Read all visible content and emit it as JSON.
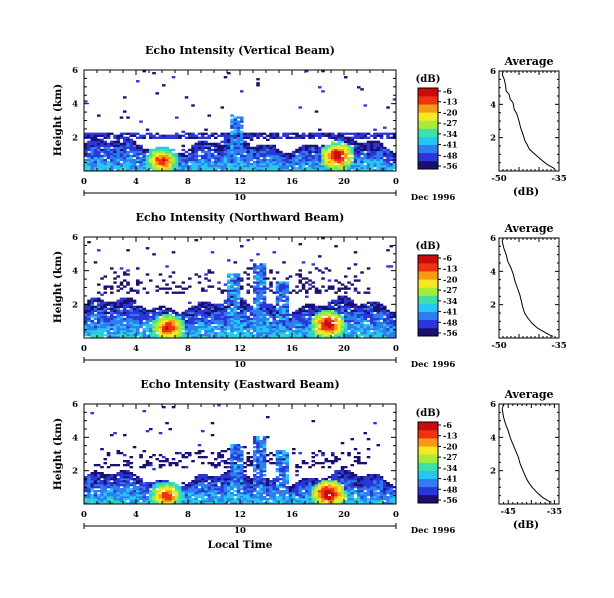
{
  "figure": {
    "bottom_xlabel": "Local Time",
    "date_label": "Dec 1996",
    "day_label": "10",
    "colorbar_title": "(dB)",
    "avg_title": "Average",
    "avg_xlabel": "(dB)"
  },
  "colorbar": {
    "ticks": [
      "-6",
      "-13",
      "-20",
      "-27",
      "-34",
      "-41",
      "-48",
      "-56"
    ],
    "colors": [
      "#1a1070",
      "#2a36d8",
      "#2f7df0",
      "#26c8f2",
      "#3ee0a8",
      "#a8ec38",
      "#f6e822",
      "#f89a18",
      "#ee3212",
      "#c80c0c"
    ]
  },
  "chart_data": [
    {
      "type": "heatmap",
      "title": "Echo Intensity (Vertical Beam)",
      "ylabel": "Height (km)",
      "x_ticks": [
        "0",
        "4",
        "8",
        "12",
        "16",
        "20",
        "0"
      ],
      "y_ticks": [
        "2",
        "4",
        "6"
      ],
      "xlim": [
        0,
        24
      ],
      "ylim": [
        0,
        6
      ],
      "units": "dB",
      "color_range": [
        -56,
        -6
      ],
      "features": {
        "base_top_km": 1.6,
        "band_km": [
          1.9,
          2.3
        ],
        "hot_spots": [
          {
            "time": 6,
            "height_km": 0.6,
            "db": -12
          },
          {
            "time": 19.5,
            "height_km": 0.9,
            "db": -8
          }
        ],
        "spikes": [
          {
            "time": 11.8,
            "top_km": 3.4
          }
        ],
        "speckle_top_km": 6
      }
    },
    {
      "type": "heatmap",
      "title": "Echo Intensity (Northward Beam)",
      "ylabel": "Height (km)",
      "x_ticks": [
        "0",
        "4",
        "8",
        "12",
        "16",
        "20",
        "0"
      ],
      "y_ticks": [
        "2",
        "4",
        "6"
      ],
      "xlim": [
        0,
        24
      ],
      "ylim": [
        0,
        6
      ],
      "units": "dB",
      "color_range": [
        -56,
        -6
      ],
      "features": {
        "base_top_km": 2.0,
        "upper_layer_km": [
          2.6,
          4.2
        ],
        "hot_spots": [
          {
            "time": 6.5,
            "height_km": 0.6,
            "db": -10
          },
          {
            "time": 18.8,
            "height_km": 0.8,
            "db": -8
          }
        ],
        "spikes": [
          {
            "time": 11.5,
            "top_km": 3.8
          },
          {
            "time": 13.5,
            "top_km": 4.4
          },
          {
            "time": 15.2,
            "top_km": 3.4
          }
        ],
        "speckle_top_km": 6
      }
    },
    {
      "type": "heatmap",
      "title": "Echo Intensity (Eastward Beam)",
      "ylabel": "Height (km)",
      "x_ticks": [
        "0",
        "4",
        "8",
        "12",
        "16",
        "20",
        "0"
      ],
      "y_ticks": [
        "2",
        "4",
        "6"
      ],
      "xlim": [
        0,
        24
      ],
      "ylim": [
        0,
        6
      ],
      "units": "dB",
      "color_range": [
        -56,
        -6
      ],
      "features": {
        "base_top_km": 1.6,
        "upper_layer_km": [
          2.2,
          3.4
        ],
        "hot_spots": [
          {
            "time": 6.3,
            "height_km": 0.5,
            "db": -12
          },
          {
            "time": 18.8,
            "height_km": 0.6,
            "db": -6
          }
        ],
        "spikes": [
          {
            "time": 11.8,
            "top_km": 3.6
          },
          {
            "time": 13.5,
            "top_km": 4.1
          },
          {
            "time": 15.2,
            "top_km": 3.2
          }
        ],
        "speckle_top_km": 6
      }
    },
    {
      "type": "line",
      "title": "Average",
      "xlabel": "(dB)",
      "x_ticks": [
        "-50",
        "-35"
      ],
      "y_ticks": [
        "2",
        "4",
        "6"
      ],
      "xlim": [
        -50,
        -35
      ],
      "ylim": [
        0,
        6
      ],
      "points": [
        [
          -49,
          6
        ],
        [
          -49.2,
          5.8
        ],
        [
          -48.7,
          5.5
        ],
        [
          -48.4,
          5.2
        ],
        [
          -48.2,
          4.8
        ],
        [
          -47.5,
          4.6
        ],
        [
          -47.2,
          4.3
        ],
        [
          -46.5,
          4.1
        ],
        [
          -46.2,
          3.7
        ],
        [
          -45.5,
          3.4
        ],
        [
          -45.0,
          3.0
        ],
        [
          -44.6,
          2.6
        ],
        [
          -44.0,
          2.2
        ],
        [
          -43.5,
          1.8
        ],
        [
          -43.0,
          1.6
        ],
        [
          -42.4,
          1.3
        ],
        [
          -41.0,
          1.0
        ],
        [
          -39.6,
          0.7
        ],
        [
          -38.0,
          0.4
        ],
        [
          -36.5,
          0.2
        ],
        [
          -36.0,
          0.1
        ]
      ]
    },
    {
      "type": "line",
      "title": "Average",
      "xlabel": "(dB)",
      "x_ticks": [
        "-50",
        "-35"
      ],
      "y_ticks": [
        "2",
        "4",
        "6"
      ],
      "xlim": [
        -50,
        -35
      ],
      "ylim": [
        0,
        6
      ],
      "points": [
        [
          -49,
          6
        ],
        [
          -49.2,
          5.8
        ],
        [
          -48.8,
          5.4
        ],
        [
          -48.2,
          5.0
        ],
        [
          -47.8,
          4.6
        ],
        [
          -47.0,
          4.2
        ],
        [
          -46.4,
          3.8
        ],
        [
          -46.0,
          3.4
        ],
        [
          -45.4,
          3.0
        ],
        [
          -44.8,
          2.6
        ],
        [
          -44.4,
          2.2
        ],
        [
          -44.0,
          1.8
        ],
        [
          -43.6,
          1.5
        ],
        [
          -42.8,
          1.2
        ],
        [
          -41.8,
          0.9
        ],
        [
          -40.4,
          0.6
        ],
        [
          -39.0,
          0.4
        ],
        [
          -37.5,
          0.2
        ],
        [
          -36.5,
          0.1
        ]
      ]
    },
    {
      "type": "line",
      "title": "Average",
      "xlabel": "(dB)",
      "x_ticks": [
        "-45",
        "-35"
      ],
      "y_ticks": [
        "2",
        "4",
        "6"
      ],
      "xlim": [
        -47,
        -34
      ],
      "ylim": [
        0,
        6
      ],
      "points": [
        [
          -46,
          6
        ],
        [
          -46.3,
          5.7
        ],
        [
          -46.0,
          5.2
        ],
        [
          -45.6,
          4.8
        ],
        [
          -45.0,
          4.4
        ],
        [
          -44.6,
          4.0
        ],
        [
          -44.0,
          3.6
        ],
        [
          -43.4,
          3.2
        ],
        [
          -42.8,
          2.8
        ],
        [
          -42.4,
          2.4
        ],
        [
          -41.8,
          2.0
        ],
        [
          -41.2,
          1.6
        ],
        [
          -40.6,
          1.3
        ],
        [
          -39.8,
          1.0
        ],
        [
          -38.8,
          0.7
        ],
        [
          -37.6,
          0.4
        ],
        [
          -36.4,
          0.2
        ],
        [
          -35.6,
          0.1
        ]
      ]
    }
  ]
}
